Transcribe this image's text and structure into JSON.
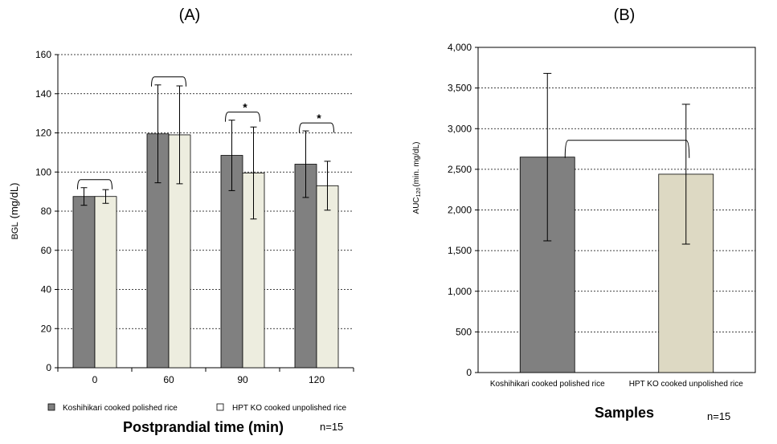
{
  "chart_data": [
    {
      "type": "bar",
      "panel_label": "(A)",
      "categories": [
        "0",
        "60",
        "90",
        "120"
      ],
      "series": [
        {
          "name": "Koshihikari cooked polished rice",
          "color": "#808080",
          "values": [
            87.5,
            119.5,
            108.5,
            104
          ],
          "error": [
            4.5,
            25,
            18,
            17
          ]
        },
        {
          "name": "HPT KO cooked unpolished rice",
          "color": "#ededdf",
          "values": [
            87.5,
            119,
            99.5,
            93
          ],
          "error": [
            3.5,
            25,
            23.5,
            12.5
          ]
        }
      ],
      "xlabel": "Postprandial time (min)",
      "ylabel_main": "BGL",
      "ylabel_unit": "(mg/dL)",
      "ylim": [
        0,
        160
      ],
      "yticks": [
        "0",
        "20",
        "40",
        "60",
        "80",
        "100",
        "120",
        "140",
        "160"
      ],
      "grid": true,
      "legend_position": "bottom",
      "significance": [
        "",
        "",
        "*",
        "*"
      ],
      "note": "n=15"
    },
    {
      "type": "bar",
      "panel_label": "(B)",
      "categories": [
        "Koshihikari cooked polished rice",
        "HPT KO  cooked unpolished rice"
      ],
      "values": [
        2650,
        2440
      ],
      "error": [
        1030,
        860
      ],
      "colors": [
        "#808080",
        "#ddd9c3"
      ],
      "xlabel": "Samples",
      "ylabel_main": "AUC",
      "ylabel_sub": "120",
      "ylabel_unit": "(min. mg/dL)",
      "ylim": [
        0,
        4000
      ],
      "yticks": [
        "0",
        "500",
        "1,000",
        "1,500",
        "2,000",
        "2,500",
        "3,000",
        "3,500",
        "4,000"
      ],
      "grid": true,
      "note": "n=15"
    }
  ]
}
